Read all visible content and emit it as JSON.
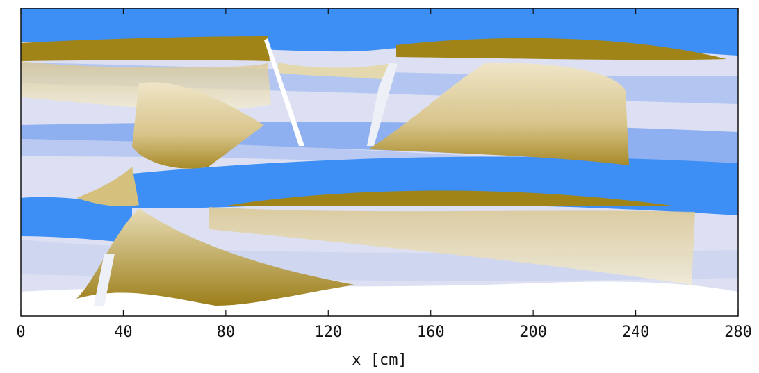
{
  "chart_data": {
    "type": "field",
    "xlabel": "x [cm]",
    "xlim": [
      0,
      280
    ],
    "xticks": [
      0,
      40,
      80,
      120,
      160,
      200,
      240,
      280
    ]
  }
}
